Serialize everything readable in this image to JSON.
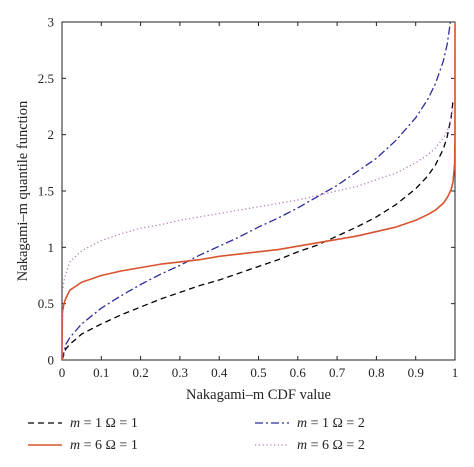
{
  "chart_data": {
    "type": "line",
    "xlabel": "Nakagami–m CDF value",
    "ylabel": "Nakagami–m quantile function",
    "xlim": [
      0,
      1
    ],
    "ylim": [
      0,
      3
    ],
    "x_ticks": [
      0,
      0.1,
      0.2,
      0.3,
      0.4,
      0.5,
      0.6,
      0.7,
      0.8,
      0.9,
      1
    ],
    "x_tick_labels": [
      "0",
      "0.1",
      "0.2",
      "0.3",
      "0.4",
      "0.5",
      "0.6",
      "0.7",
      "0.8",
      "0.9",
      "1"
    ],
    "y_ticks": [
      0,
      0.5,
      1,
      1.5,
      2,
      2.5,
      3
    ],
    "y_tick_labels": [
      "0",
      "0.5",
      "1",
      "1.5",
      "2",
      "2.5",
      "3"
    ],
    "grid": false,
    "legend_position": "bottom",
    "series": [
      {
        "name": "m = 1 Ω = 1",
        "m_label": "m",
        "rest_label": " = 1 Ω = 1",
        "style": "dashed",
        "color": "#000000",
        "x": [
          0,
          0.01,
          0.02,
          0.05,
          0.1,
          0.15,
          0.2,
          0.25,
          0.3,
          0.35,
          0.4,
          0.45,
          0.5,
          0.55,
          0.6,
          0.65,
          0.7,
          0.75,
          0.8,
          0.85,
          0.9,
          0.93,
          0.95,
          0.97,
          0.98,
          0.99,
          0.995
        ],
        "y": [
          0,
          0.1,
          0.14,
          0.23,
          0.32,
          0.4,
          0.47,
          0.54,
          0.6,
          0.66,
          0.71,
          0.77,
          0.83,
          0.89,
          0.96,
          1.02,
          1.1,
          1.18,
          1.27,
          1.38,
          1.52,
          1.63,
          1.73,
          1.87,
          1.98,
          2.15,
          2.3
        ]
      },
      {
        "name": "m = 1 Ω = 2",
        "m_label": "m",
        "rest_label": " = 1 Ω = 2",
        "style": "dashdot",
        "color": "#2b2b9a",
        "x": [
          0,
          0.01,
          0.02,
          0.05,
          0.1,
          0.15,
          0.2,
          0.25,
          0.3,
          0.35,
          0.4,
          0.45,
          0.5,
          0.55,
          0.6,
          0.65,
          0.7,
          0.75,
          0.8,
          0.85,
          0.9,
          0.93,
          0.95,
          0.97,
          0.98,
          0.99,
          0.995
        ],
        "y": [
          0,
          0.14,
          0.2,
          0.32,
          0.46,
          0.57,
          0.67,
          0.76,
          0.84,
          0.93,
          1.01,
          1.09,
          1.18,
          1.26,
          1.35,
          1.45,
          1.55,
          1.67,
          1.79,
          1.95,
          2.15,
          2.31,
          2.45,
          2.65,
          2.8,
          3.04,
          3.25
        ]
      },
      {
        "name": "m = 6 Ω = 1",
        "m_label": "m",
        "rest_label": " = 6 Ω = 1",
        "style": "solid",
        "color": "#d9532e",
        "x": [
          0,
          0.001,
          0.005,
          0.01,
          0.02,
          0.05,
          0.1,
          0.15,
          0.2,
          0.25,
          0.3,
          0.35,
          0.4,
          0.45,
          0.5,
          0.55,
          0.6,
          0.65,
          0.7,
          0.75,
          0.8,
          0.85,
          0.9,
          0.93,
          0.95,
          0.97,
          0.98,
          0.99,
          0.995,
          0.999,
          0.9999,
          1
        ],
        "y": [
          0,
          0.42,
          0.5,
          0.55,
          0.62,
          0.69,
          0.75,
          0.79,
          0.82,
          0.85,
          0.87,
          0.89,
          0.92,
          0.94,
          0.96,
          0.98,
          1.01,
          1.04,
          1.07,
          1.1,
          1.14,
          1.18,
          1.24,
          1.29,
          1.33,
          1.39,
          1.44,
          1.51,
          1.58,
          1.74,
          1.98,
          3.0
        ]
      },
      {
        "name": "m = 6 Ω = 2",
        "m_label": "m",
        "rest_label": " = 6 Ω = 2",
        "style": "dotted",
        "color": "#b47ab8",
        "x": [
          0,
          0.001,
          0.005,
          0.01,
          0.02,
          0.05,
          0.1,
          0.15,
          0.2,
          0.25,
          0.3,
          0.35,
          0.4,
          0.45,
          0.5,
          0.55,
          0.6,
          0.65,
          0.7,
          0.75,
          0.8,
          0.85,
          0.9,
          0.93,
          0.95,
          0.97,
          0.98,
          0.99,
          0.995
        ],
        "y": [
          0,
          0.6,
          0.7,
          0.77,
          0.87,
          0.97,
          1.06,
          1.12,
          1.17,
          1.2,
          1.24,
          1.27,
          1.3,
          1.33,
          1.36,
          1.39,
          1.42,
          1.46,
          1.5,
          1.54,
          1.6,
          1.66,
          1.75,
          1.82,
          1.88,
          1.97,
          2.03,
          2.14,
          2.24
        ]
      }
    ]
  }
}
